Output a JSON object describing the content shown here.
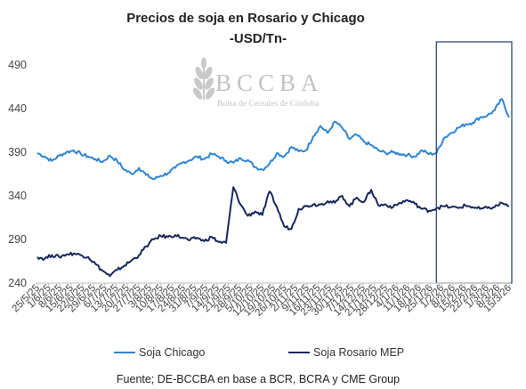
{
  "chart_data": {
    "type": "line",
    "title": "Precios de soja en Rosario y Chicago",
    "subtitle": "-USD/Tn-",
    "xlabel": "",
    "ylabel": "",
    "ylim": [
      240,
      490
    ],
    "yticks": [
      240,
      290,
      340,
      390,
      440,
      490
    ],
    "grid": false,
    "legend_position": "bottom",
    "x_tick_labels": [
      "25/5/25",
      "1/6/25",
      "8/6/25",
      "15/6/25",
      "22/6/25",
      "29/6/25",
      "6/7/25",
      "13/7/25",
      "20/7/25",
      "27/7/25",
      "3/8/25",
      "10/8/25",
      "17/8/25",
      "24/8/25",
      "31/8/25",
      "7/9/25",
      "14/9/25",
      "21/9/25",
      "28/9/25",
      "5/10/25",
      "12/10/25",
      "19/10/25",
      "26/10/25",
      "2/11/25",
      "9/11/25",
      "16/11/25",
      "23/11/25",
      "30/11/25",
      "7/12/25",
      "14/12/25",
      "21/12/25",
      "28/12/25",
      "4/1/26",
      "11/1/26",
      "18/1/26",
      "25/1/26",
      "1/2/26",
      "8/2/26",
      "15/2/26",
      "22/2/26",
      "1/3/26",
      "8/3/26",
      "15/3/26"
    ],
    "highlight_from": "1/2/26",
    "series": [
      {
        "name": "Soja Chicago",
        "color": "#2e86d4",
        "values": [
          389,
          385,
          380,
          386,
          390,
          392,
          388,
          385,
          382,
          379,
          386,
          380,
          370,
          365,
          372,
          364,
          359,
          363,
          366,
          372,
          378,
          381,
          385,
          382,
          388,
          385,
          380,
          378,
          383,
          381,
          373,
          370,
          377,
          389,
          385,
          396,
          391,
          392,
          408,
          420,
          412,
          425,
          418,
          405,
          410,
          402,
          398,
          392,
          389,
          390,
          388,
          387,
          385,
          392,
          388,
          389,
          406,
          412,
          418,
          422,
          424,
          430,
          432,
          438,
          451,
          430
        ]
      },
      {
        "name": "Soja Rosario MEP",
        "color": "#17285e",
        "values": [
          270,
          268,
          272,
          270,
          273,
          274,
          272,
          270,
          262,
          254,
          248,
          255,
          260,
          266,
          272,
          282,
          290,
          294,
          293,
          295,
          292,
          289,
          292,
          288,
          293,
          287,
          286,
          350,
          330,
          317,
          322,
          318,
          345,
          327,
          305,
          302,
          325,
          328,
          330,
          330,
          334,
          332,
          340,
          328,
          338,
          333,
          347,
          329,
          330,
          327,
          332,
          335,
          331,
          325,
          323,
          326,
          328,
          327,
          326,
          329,
          327,
          325,
          326,
          327,
          332,
          328
        ]
      }
    ]
  },
  "source_note": "Fuente; DE-BCCBA en base a BCR, BCRA y CME Group",
  "logo": {
    "name": "BCCBA",
    "subtitle": "Bolsa de Cereales de Córdoba"
  }
}
